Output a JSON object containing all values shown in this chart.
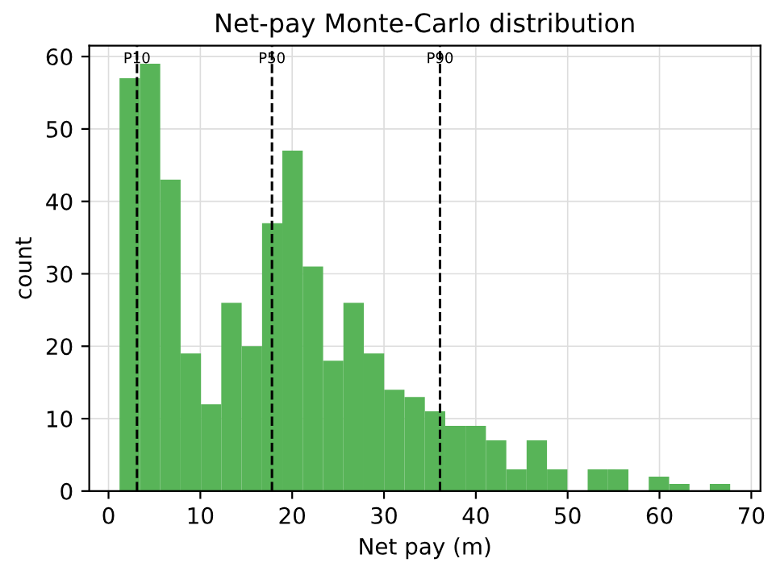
{
  "chart_data": {
    "type": "histogram",
    "title": "Net-pay Monte-Carlo distribution",
    "xlabel": "Net pay (m)",
    "ylabel": "count",
    "bins": [
      1.2,
      3.42,
      5.63,
      7.85,
      10.07,
      12.28,
      14.5,
      16.72,
      18.93,
      21.15,
      23.37,
      25.58,
      27.8,
      30.02,
      32.23,
      34.45,
      36.67,
      38.88,
      41.1,
      43.32,
      45.53,
      47.75,
      49.97,
      52.18,
      54.4,
      56.62,
      58.83,
      61.05,
      63.27,
      65.48,
      67.7
    ],
    "values": [
      57,
      59,
      43,
      19,
      12,
      26,
      20,
      37,
      47,
      31,
      18,
      26,
      19,
      14,
      13,
      11,
      9,
      9,
      7,
      3,
      7,
      3,
      0,
      3,
      3,
      0,
      2,
      1,
      0,
      1
    ],
    "color": "#58b458",
    "xlim": [
      -2.1,
      71.0
    ],
    "ylim": [
      0,
      61.5
    ],
    "xticks": [
      0,
      10,
      20,
      30,
      40,
      50,
      60,
      70
    ],
    "yticks": [
      0,
      10,
      20,
      30,
      40,
      50,
      60
    ],
    "grid": true,
    "ref_lines": [
      {
        "axis": "x",
        "value": 3.1,
        "label": "P10",
        "color": "#000000",
        "line_style": "dashed"
      },
      {
        "axis": "x",
        "value": 17.8,
        "label": "P50",
        "color": "#000000",
        "line_style": "dashed"
      },
      {
        "axis": "x",
        "value": 36.1,
        "label": "P90",
        "color": "#000000",
        "line_style": "dashed"
      }
    ]
  }
}
